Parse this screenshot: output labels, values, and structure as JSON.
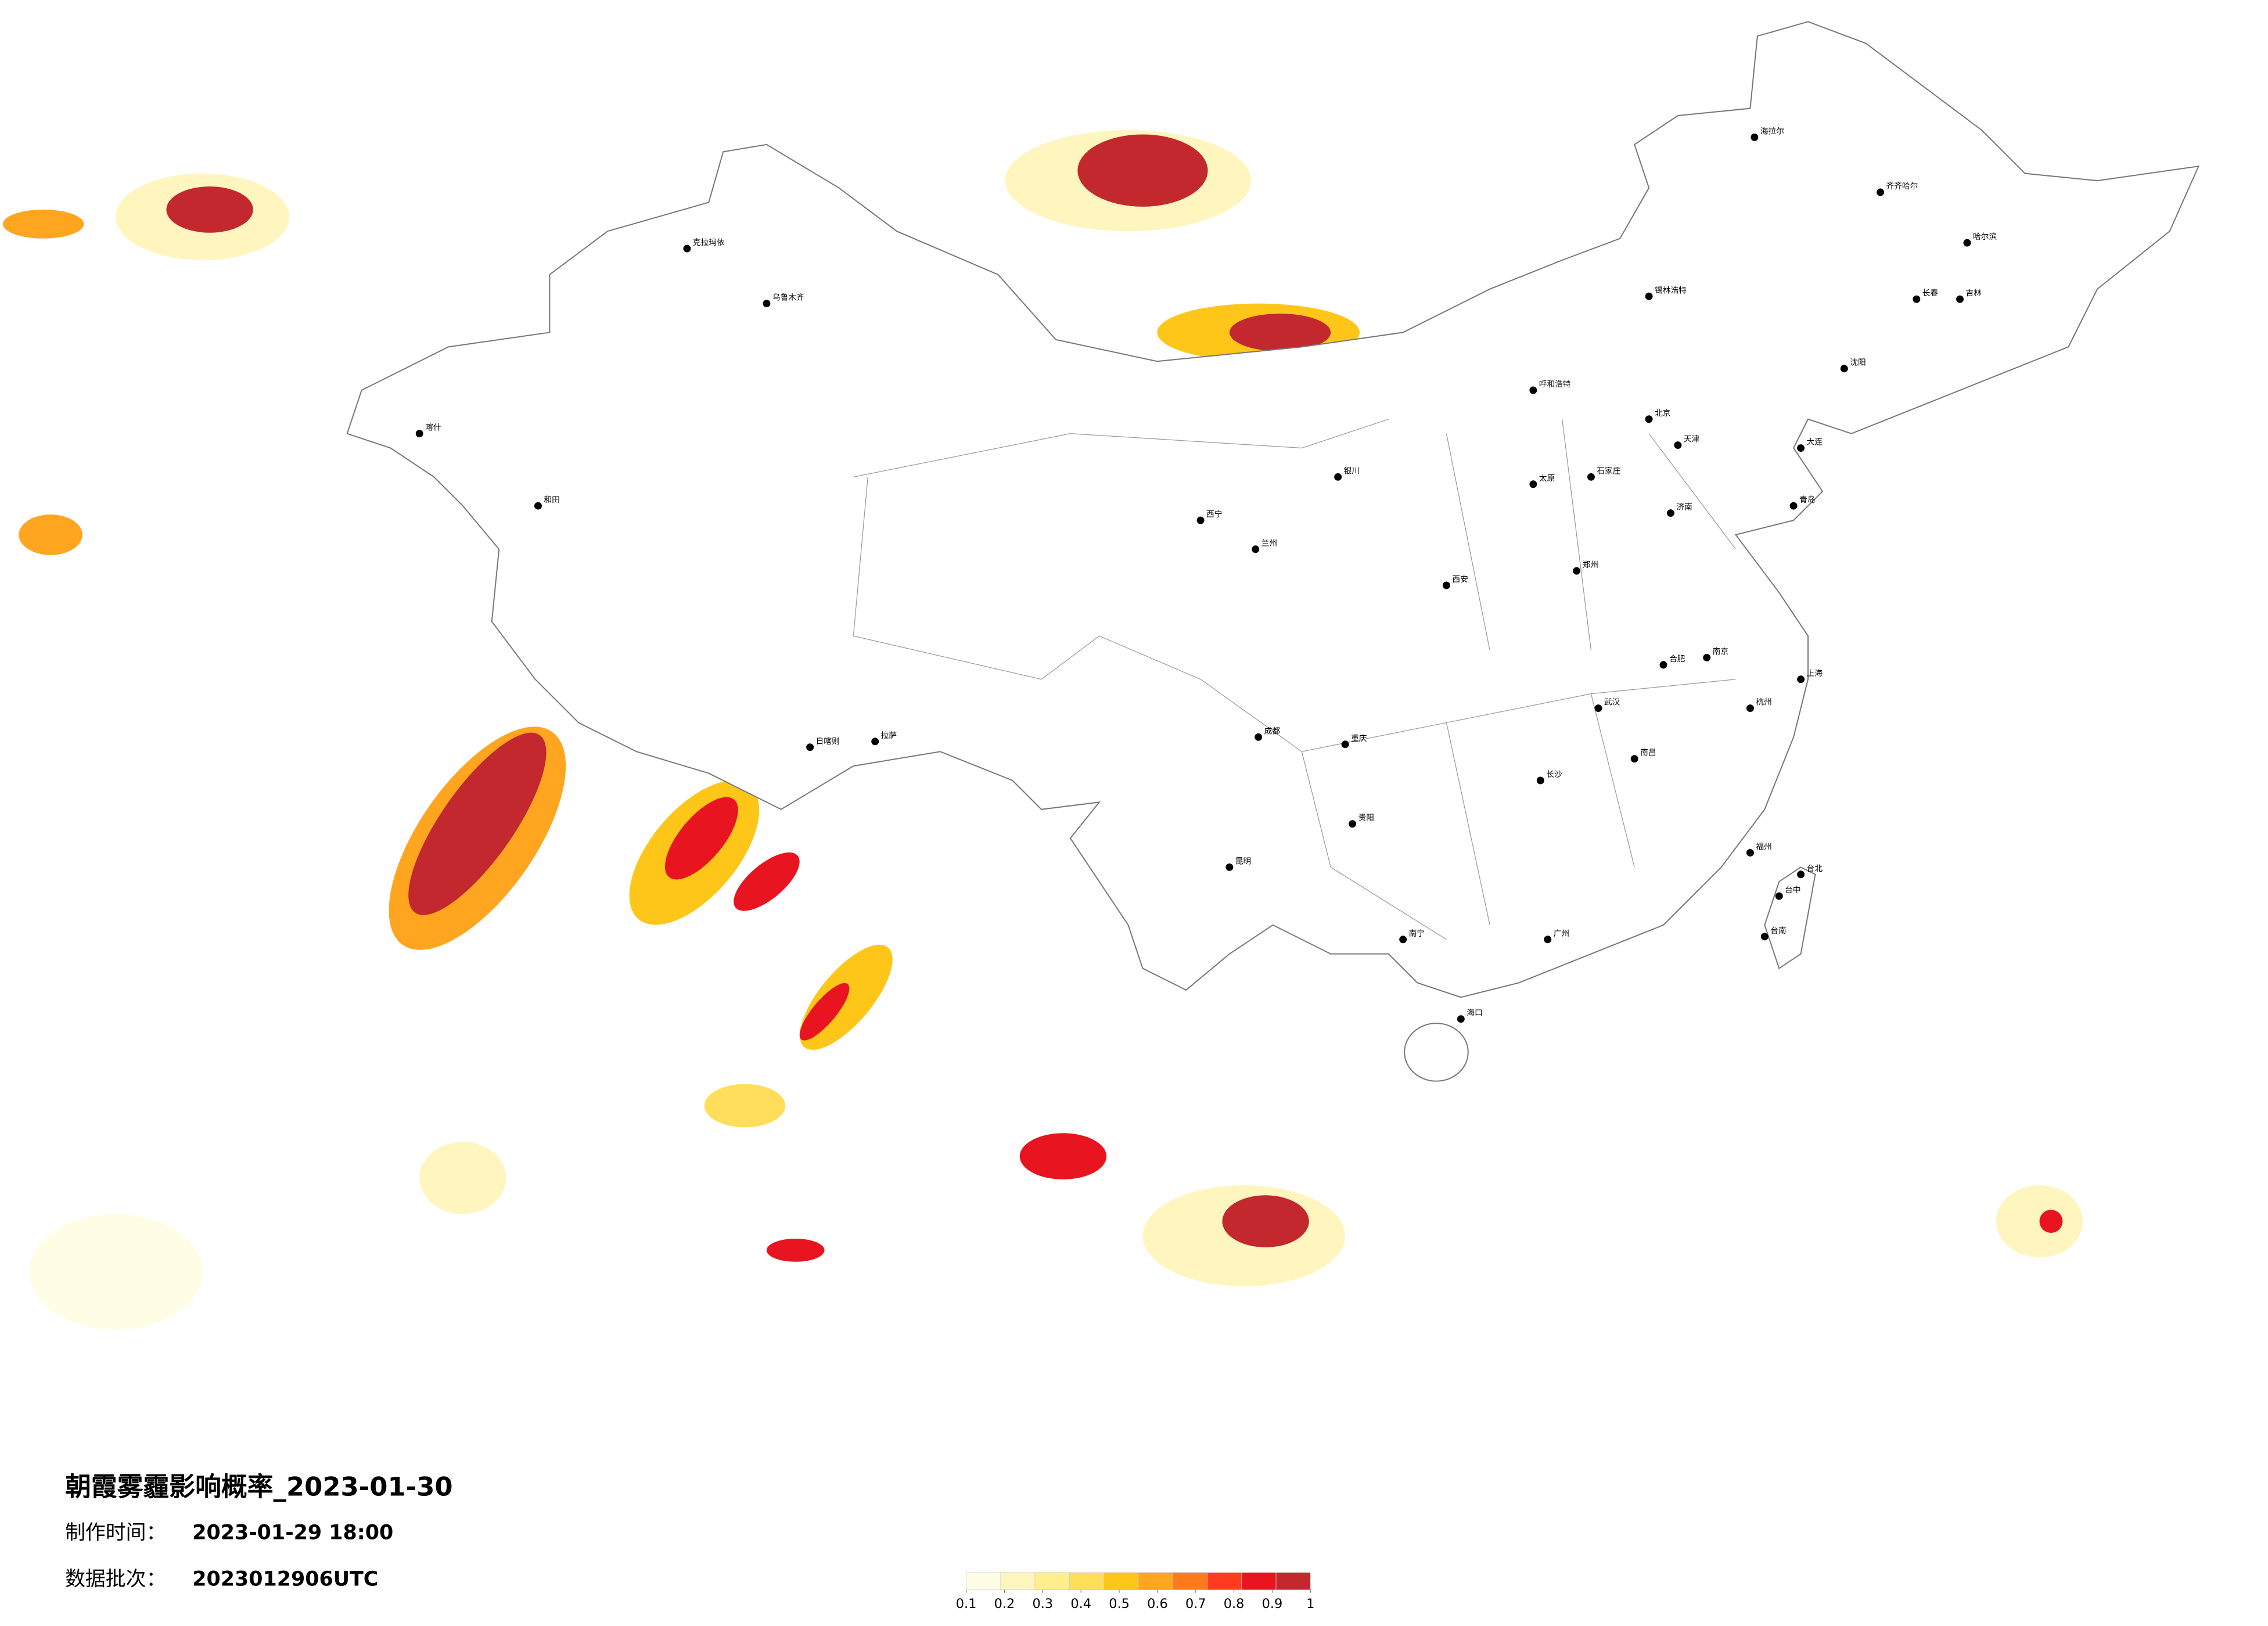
{
  "title": "朝霞雾霾影响概率_2023-01-30",
  "made_label": "制作时间：",
  "made_time": "2023-01-29 18:00",
  "batch_label": "数据批次：",
  "batch": "2023012906UTC",
  "legend": {
    "colors": [
      "#fffde6",
      "#fff6bf",
      "#ffee8c",
      "#ffde5c",
      "#ffc61a",
      "#ffa51f",
      "#ff7a1a",
      "#ff3c1e",
      "#e81420",
      "#c2282e"
    ],
    "ticks": [
      0.1,
      0.2,
      0.3,
      0.4,
      0.5,
      0.6,
      0.7,
      0.8,
      0.9,
      1
    ]
  },
  "cities": [
    "海拉尔",
    "齐齐哈尔",
    "哈尔滨",
    "长春",
    "吉林",
    "沈阳",
    "大连",
    "呼和浩特",
    "锡林浩特",
    "北京",
    "天津",
    "石家庄",
    "太原",
    "济南",
    "青岛",
    "郑州",
    "西安",
    "兰州",
    "西宁",
    "银川",
    "乌鲁木齐",
    "克拉玛依",
    "喀什",
    "和田",
    "拉萨",
    "日喀则",
    "成都",
    "重庆",
    "贵阳",
    "昆明",
    "南宁",
    "广州",
    "海口",
    "长沙",
    "武汉",
    "南昌",
    "杭州",
    "上海",
    "南京",
    "合肥",
    "福州",
    "台北",
    "台中",
    "台南"
  ]
}
